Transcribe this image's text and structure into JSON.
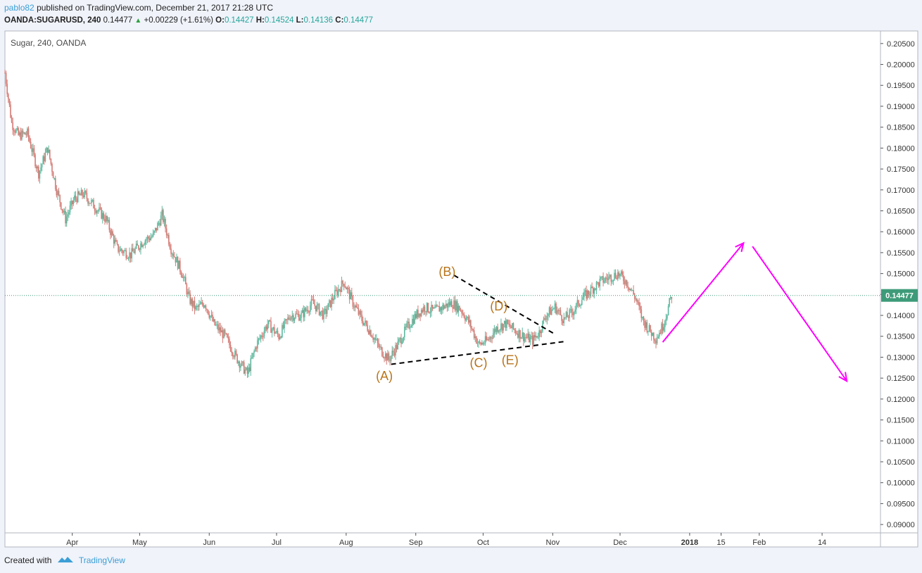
{
  "header": {
    "user": "pablo82",
    "published_text": "published on TradingView.com, December 21, 2017 21:28 UTC",
    "symbol": "OANDA:SUGARUSD, 240",
    "last": "0.14477",
    "change": "+0.00229 (+1.61%)",
    "o_label": "O:",
    "o_value": "0.14427",
    "h_label": "H:",
    "h_value": "0.14524",
    "l_label": "L:",
    "l_value": "0.14136",
    "c_label": "C:",
    "c_value": "0.14477"
  },
  "footer": {
    "created_with": "Created with",
    "brand": "TradingView"
  },
  "chart_data": {
    "type": "candlestick",
    "instrument_label": "Sugar, 240, OANDA",
    "ylim": [
      0.088,
      0.208
    ],
    "y_ticks": [
      "0.09000",
      "0.09500",
      "0.10000",
      "0.10500",
      "0.11000",
      "0.11500",
      "0.12000",
      "0.12500",
      "0.13000",
      "0.13500",
      "0.14000",
      "0.14500",
      "0.15000",
      "0.15500",
      "0.16000",
      "0.16500",
      "0.17000",
      "0.17500",
      "0.18000",
      "0.18500",
      "0.19000",
      "0.19500",
      "0.20000",
      "0.20500"
    ],
    "x_ticks": [
      {
        "label": "Apr",
        "t": 23
      },
      {
        "label": "May",
        "t": 53
      },
      {
        "label": "Jun",
        "t": 84
      },
      {
        "label": "Jul",
        "t": 114
      },
      {
        "label": "Aug",
        "t": 145
      },
      {
        "label": "Sep",
        "t": 176
      },
      {
        "label": "Oct",
        "t": 206
      },
      {
        "label": "Nov",
        "t": 237
      },
      {
        "label": "Dec",
        "t": 267
      },
      {
        "label": "2018",
        "t": 298
      },
      {
        "label": "15",
        "t": 312
      },
      {
        "label": "Feb",
        "t": 329
      },
      {
        "label": "14",
        "t": 357
      }
    ],
    "t_range": [
      -7,
      383
    ],
    "last_price": 0.14477,
    "last_price_label": "0.14477",
    "price_path": [
      {
        "t": -7,
        "p": 0.198
      },
      {
        "t": -4,
        "p": 0.186
      },
      {
        "t": -1,
        "p": 0.183
      },
      {
        "t": 3,
        "p": 0.1835
      },
      {
        "t": 8,
        "p": 0.174
      },
      {
        "t": 12,
        "p": 0.18
      },
      {
        "t": 16,
        "p": 0.17
      },
      {
        "t": 20,
        "p": 0.163
      },
      {
        "t": 24,
        "p": 0.168
      },
      {
        "t": 28,
        "p": 0.169
      },
      {
        "t": 33,
        "p": 0.166
      },
      {
        "t": 38,
        "p": 0.163
      },
      {
        "t": 43,
        "p": 0.156
      },
      {
        "t": 49,
        "p": 0.1545
      },
      {
        "t": 55,
        "p": 0.158
      },
      {
        "t": 59,
        "p": 0.159
      },
      {
        "t": 63,
        "p": 0.164
      },
      {
        "t": 67,
        "p": 0.156
      },
      {
        "t": 72,
        "p": 0.15
      },
      {
        "t": 75,
        "p": 0.144
      },
      {
        "t": 78,
        "p": 0.1415
      },
      {
        "t": 82,
        "p": 0.143
      },
      {
        "t": 86,
        "p": 0.138
      },
      {
        "t": 91,
        "p": 0.135
      },
      {
        "t": 96,
        "p": 0.13
      },
      {
        "t": 101,
        "p": 0.126
      },
      {
        "t": 105,
        "p": 0.133
      },
      {
        "t": 110,
        "p": 0.138
      },
      {
        "t": 115,
        "p": 0.135
      },
      {
        "t": 120,
        "p": 0.14
      },
      {
        "t": 125,
        "p": 0.14
      },
      {
        "t": 130,
        "p": 0.143
      },
      {
        "t": 135,
        "p": 0.14
      },
      {
        "t": 140,
        "p": 0.145
      },
      {
        "t": 144,
        "p": 0.148
      },
      {
        "t": 148,
        "p": 0.143
      },
      {
        "t": 152,
        "p": 0.139
      },
      {
        "t": 156,
        "p": 0.136
      },
      {
        "t": 160,
        "p": 0.132
      },
      {
        "t": 164,
        "p": 0.1295
      },
      {
        "t": 168,
        "p": 0.133
      },
      {
        "t": 172,
        "p": 0.137
      },
      {
        "t": 176,
        "p": 0.14
      },
      {
        "t": 180,
        "p": 0.142
      },
      {
        "t": 184,
        "p": 0.141
      },
      {
        "t": 188,
        "p": 0.142
      },
      {
        "t": 192,
        "p": 0.143
      },
      {
        "t": 196,
        "p": 0.1415
      },
      {
        "t": 200,
        "p": 0.138
      },
      {
        "t": 204,
        "p": 0.133
      },
      {
        "t": 208,
        "p": 0.134
      },
      {
        "t": 212,
        "p": 0.137
      },
      {
        "t": 216,
        "p": 0.138
      },
      {
        "t": 220,
        "p": 0.1365
      },
      {
        "t": 224,
        "p": 0.135
      },
      {
        "t": 228,
        "p": 0.134
      },
      {
        "t": 231,
        "p": 0.136
      },
      {
        "t": 234,
        "p": 0.14
      },
      {
        "t": 238,
        "p": 0.142
      },
      {
        "t": 242,
        "p": 0.139
      },
      {
        "t": 246,
        "p": 0.141
      },
      {
        "t": 250,
        "p": 0.144
      },
      {
        "t": 254,
        "p": 0.146
      },
      {
        "t": 258,
        "p": 0.148
      },
      {
        "t": 262,
        "p": 0.149
      },
      {
        "t": 266,
        "p": 0.15
      },
      {
        "t": 270,
        "p": 0.148
      },
      {
        "t": 274,
        "p": 0.144
      },
      {
        "t": 277,
        "p": 0.139
      },
      {
        "t": 280,
        "p": 0.1365
      },
      {
        "t": 283,
        "p": 0.1345
      },
      {
        "t": 286,
        "p": 0.1375
      },
      {
        "t": 288,
        "p": 0.141
      },
      {
        "t": 290,
        "p": 0.1448
      }
    ],
    "annotations": [
      {
        "text": "(A)",
        "t": 162,
        "p": 0.1245
      },
      {
        "text": "(B)",
        "t": 190,
        "p": 0.1494
      },
      {
        "text": "(C)",
        "t": 204,
        "p": 0.1276
      },
      {
        "text": "(D)",
        "t": 213,
        "p": 0.1412
      },
      {
        "text": "(E)",
        "t": 218,
        "p": 0.1283
      }
    ],
    "annotation_color": "#b8741a",
    "dashed_lines": [
      {
        "t1": 165,
        "p1": 0.1283,
        "t2": 243,
        "p2": 0.1338
      },
      {
        "t1": 193,
        "p1": 0.1496,
        "t2": 238,
        "p2": 0.1355
      }
    ],
    "projection_color": "#ff00ff",
    "projection_arrows": [
      {
        "t1": 286,
        "p1": 0.1336,
        "t2": 322,
        "p2": 0.1573
      },
      {
        "t1": 326,
        "p1": 0.1565,
        "t2": 368,
        "p2": 0.1243
      }
    ],
    "up_color": "#5db89e",
    "down_color": "#d57a74"
  }
}
